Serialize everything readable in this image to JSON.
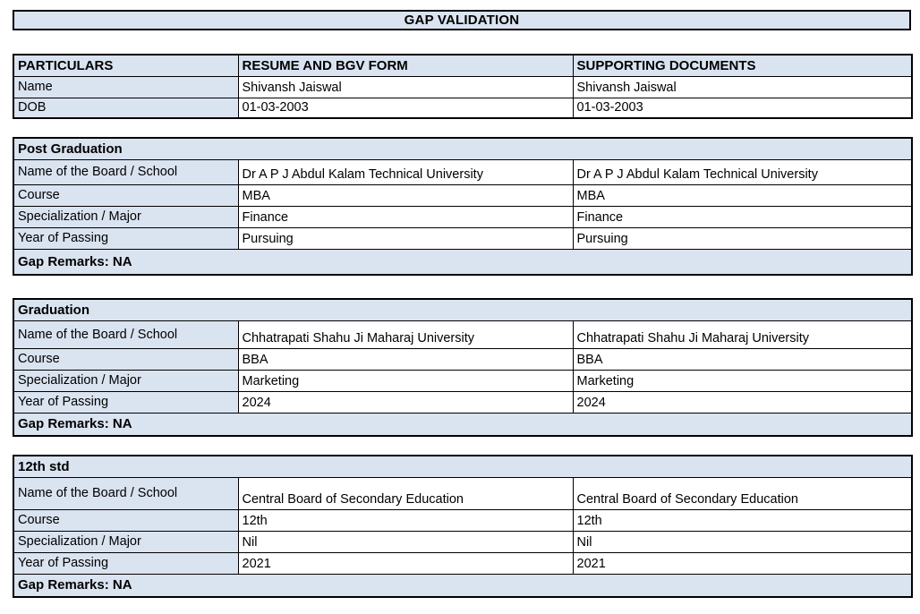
{
  "page": {
    "title": "GAP VALIDATION"
  },
  "colors": {
    "header_fill": "#dae3f0",
    "value_fill": "#ffffff",
    "border": "#000000",
    "text": "#000000"
  },
  "identity_table": {
    "headers": [
      "PARTICULARS",
      "RESUME AND BGV FORM",
      "SUPPORTING DOCUMENTS"
    ],
    "rows": [
      {
        "label": "Name",
        "resume": "Shivansh Jaiswal",
        "supporting": "Shivansh Jaiswal"
      },
      {
        "label": "DOB",
        "resume": "01-03-2003",
        "supporting": "01-03-2003"
      }
    ]
  },
  "sections": [
    {
      "title": "Post Graduation",
      "rows": [
        {
          "label": "Name of the Board / School",
          "resume": "Dr A P J Abdul Kalam Technical University",
          "supporting": "Dr A P J Abdul Kalam Technical University"
        },
        {
          "label": "Course",
          "resume": "MBA",
          "supporting": "MBA"
        },
        {
          "label": "Specialization / Major",
          "resume": "Finance",
          "supporting": "Finance"
        },
        {
          "label": "Year of Passing",
          "resume": "Pursuing",
          "supporting": "Pursuing"
        }
      ],
      "gap_remarks": "Gap Remarks: NA"
    },
    {
      "title": "Graduation",
      "rows": [
        {
          "label": "Name of the Board / School",
          "resume": "Chhatrapati Shahu Ji Maharaj University",
          "supporting": "Chhatrapati Shahu Ji Maharaj University"
        },
        {
          "label": "Course",
          "resume": "BBA",
          "supporting": "BBA"
        },
        {
          "label": "Specialization / Major",
          "resume": "Marketing",
          "supporting": "Marketing"
        },
        {
          "label": "Year of Passing",
          "resume": "2024",
          "supporting": "2024"
        }
      ],
      "gap_remarks": "Gap Remarks: NA"
    },
    {
      "title": "12th std",
      "rows": [
        {
          "label": "Name of the Board / School",
          "resume": "Central Board of Secondary Education",
          "supporting": "Central Board of Secondary Education"
        },
        {
          "label": "Course",
          "resume": "12th",
          "supporting": "12th"
        },
        {
          "label": "Specialization / Major",
          "resume": "Nil",
          "supporting": "Nil"
        },
        {
          "label": "Year of Passing",
          "resume": "2021",
          "supporting": "2021"
        }
      ],
      "gap_remarks": "Gap Remarks: NA"
    }
  ]
}
